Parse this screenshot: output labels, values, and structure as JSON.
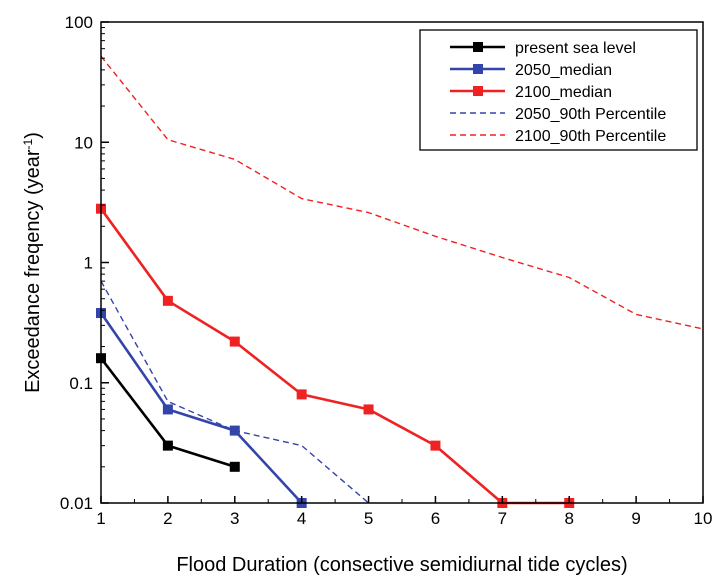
{
  "chart_data": {
    "type": "line",
    "title": "",
    "xlabel": "Flood Duration (consective semidiurnal tide cycles)",
    "ylabel_main": "Exceedance freqency (year",
    "ylabel_sup": "-1",
    "ylabel_close": ")",
    "xlim": [
      1,
      10
    ],
    "ylim": [
      0.01,
      100
    ],
    "yscale": "log",
    "grid": false,
    "legend_position": "top-right",
    "x_ticks": [
      1,
      2,
      3,
      4,
      5,
      6,
      7,
      8,
      9,
      10
    ],
    "x_tick_labels": [
      "1",
      "2",
      "3",
      "4",
      "5",
      "6",
      "7",
      "8",
      "9",
      "10"
    ],
    "y_ticks": [
      0.01,
      0.1,
      1,
      10,
      100
    ],
    "y_tick_labels": [
      "0.01",
      "0.1",
      "1",
      "10",
      "100"
    ],
    "series": [
      {
        "name": "present sea level",
        "color": "#000000",
        "style": "solid",
        "marker": "square",
        "x": [
          1,
          2,
          3
        ],
        "y": [
          0.16,
          0.03,
          0.02
        ]
      },
      {
        "name": "2050_median",
        "color": "#3344aa",
        "style": "solid",
        "marker": "square",
        "x": [
          1,
          2,
          3,
          4
        ],
        "y": [
          0.38,
          0.06,
          0.04,
          0.01
        ]
      },
      {
        "name": "2100_median",
        "color": "#ee2222",
        "style": "solid",
        "marker": "square",
        "x": [
          1,
          2,
          3,
          4,
          5,
          6,
          7,
          8
        ],
        "y": [
          2.8,
          0.48,
          0.22,
          0.08,
          0.06,
          0.03,
          0.01,
          0.01
        ]
      },
      {
        "name": "2050_90th Percentile",
        "color": "#3344aa",
        "style": "dashed",
        "marker": "none",
        "x": [
          1,
          2,
          3,
          4,
          5
        ],
        "y": [
          0.7,
          0.07,
          0.04,
          0.03,
          0.01
        ]
      },
      {
        "name": "2100_90th Percentile",
        "color": "#ee2222",
        "style": "dashed",
        "marker": "none",
        "x": [
          1,
          2,
          3,
          4,
          5,
          6,
          7,
          8,
          9,
          10
        ],
        "y": [
          52,
          10.5,
          7.2,
          3.4,
          2.6,
          1.65,
          1.1,
          0.75,
          0.37,
          0.28
        ]
      }
    ]
  }
}
